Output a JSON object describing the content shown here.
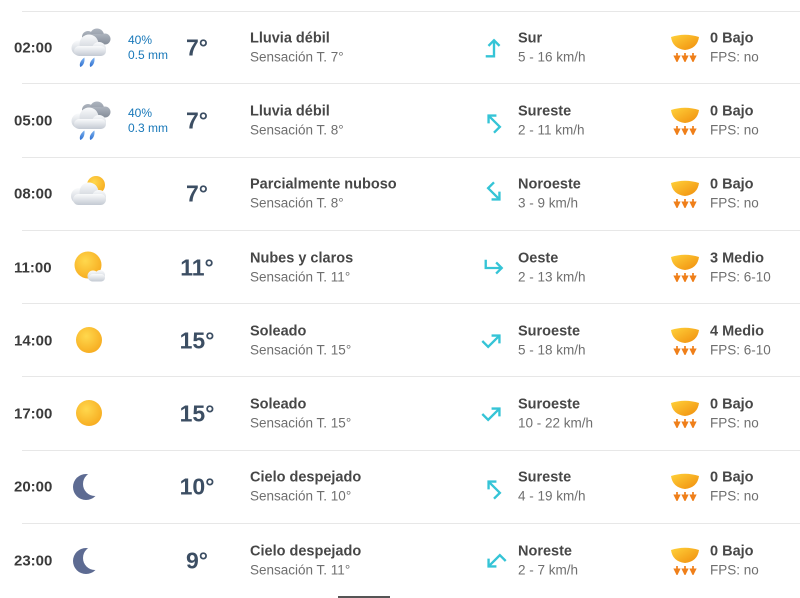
{
  "widget": "hourly-weather-forecast",
  "language": "es",
  "colors": {
    "precip_text": "#1878b9",
    "temperature_text": "#3c4e63",
    "wind_arrow": "#35c4d6",
    "uv_icon_orange": "#f6a41f",
    "moon_icon": "#5d6b92",
    "sun_icon": "#f9b614",
    "row_divider": "#e7e7e7"
  },
  "rows": [
    {
      "time": "02:00",
      "weather_icon": "rain-cloud",
      "precip_probability": "40%",
      "precip_amount": "0.5 mm",
      "temperature": "7°",
      "condition": "Lluvia débil",
      "feels_like": "Sensación T. 7°",
      "wind_arrow": "up",
      "wind_direction": "Sur",
      "wind_speed": "5 - 16 km/h",
      "uv_index": "0 Bajo",
      "uv_fps": "FPS: no"
    },
    {
      "time": "05:00",
      "weather_icon": "rain-cloud",
      "precip_probability": "40%",
      "precip_amount": "0.3 mm",
      "temperature": "7°",
      "condition": "Lluvia débil",
      "feels_like": "Sensación T. 8°",
      "wind_arrow": "up-left",
      "wind_direction": "Sureste",
      "wind_speed": "2 - 11 km/h",
      "uv_index": "0 Bajo",
      "uv_fps": "FPS: no"
    },
    {
      "time": "08:00",
      "weather_icon": "partly-cloudy",
      "temperature": "7°",
      "condition": "Parcialmente nuboso",
      "feels_like": "Sensación T. 8°",
      "wind_arrow": "down-right",
      "wind_direction": "Noroeste",
      "wind_speed": "3 - 9 km/h",
      "uv_index": "0 Bajo",
      "uv_fps": "FPS: no"
    },
    {
      "time": "11:00",
      "weather_icon": "sun-with-cloud",
      "temperature": "11°",
      "condition": "Nubes y claros",
      "feels_like": "Sensación T. 11°",
      "wind_arrow": "right",
      "wind_direction": "Oeste",
      "wind_speed": "2 - 13 km/h",
      "uv_index": "3 Medio",
      "uv_fps": "FPS: 6-10"
    },
    {
      "time": "14:00",
      "weather_icon": "sun",
      "temperature": "15°",
      "condition": "Soleado",
      "feels_like": "Sensación T. 15°",
      "wind_arrow": "up-right",
      "wind_direction": "Suroeste",
      "wind_speed": "5 - 18 km/h",
      "uv_index": "4 Medio",
      "uv_fps": "FPS: 6-10"
    },
    {
      "time": "17:00",
      "weather_icon": "sun",
      "temperature": "15°",
      "condition": "Soleado",
      "feels_like": "Sensación T. 15°",
      "wind_arrow": "up-right",
      "wind_direction": "Suroeste",
      "wind_speed": "10 - 22 km/h",
      "uv_index": "0 Bajo",
      "uv_fps": "FPS: no"
    },
    {
      "time": "20:00",
      "weather_icon": "moon",
      "temperature": "10°",
      "condition": "Cielo despejado",
      "feels_like": "Sensación T. 10°",
      "wind_arrow": "up-left",
      "wind_direction": "Sureste",
      "wind_speed": "4 - 19 km/h",
      "uv_index": "0 Bajo",
      "uv_fps": "FPS: no"
    },
    {
      "time": "23:00",
      "weather_icon": "moon",
      "temperature": "9°",
      "condition": "Cielo despejado",
      "feels_like": "Sensación T. 11°",
      "wind_arrow": "down-left",
      "wind_direction": "Noreste",
      "wind_speed": "2 - 7 km/h",
      "uv_index": "0 Bajo",
      "uv_fps": "FPS: no"
    }
  ]
}
